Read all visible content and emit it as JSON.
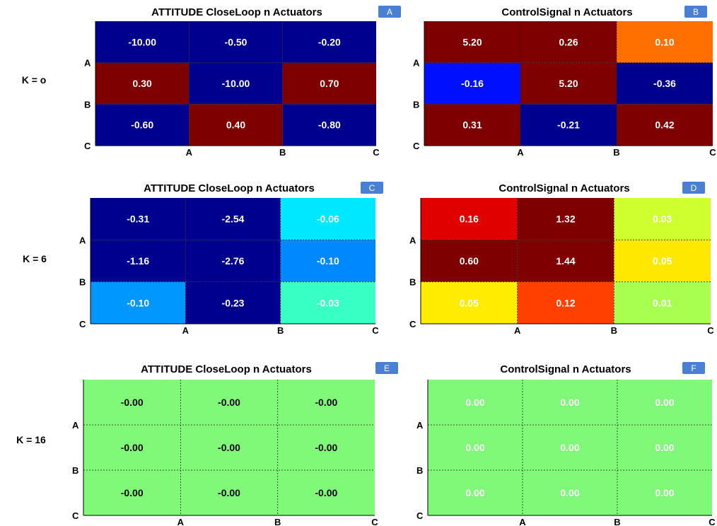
{
  "chart_data": [
    {
      "type": "heatmap",
      "title": "ATTITUDE CloseLoop n Actuators",
      "badge": "A",
      "row_group_label": "K = o",
      "row_tick_labels": [
        "A",
        "B",
        "C"
      ],
      "col_tick_labels": [
        "A",
        "B",
        "C"
      ],
      "values": [
        [
          -10.0,
          -0.5,
          -0.2
        ],
        [
          0.3,
          -10.0,
          0.7
        ],
        [
          -0.6,
          0.4,
          -0.8
        ]
      ],
      "cell_labels": [
        [
          "-10.00",
          "-0.50",
          "-0.20"
        ],
        [
          "0.30",
          "-10.00",
          "0.70"
        ],
        [
          "-0.60",
          "0.40",
          "-0.80"
        ]
      ],
      "cell_colors": [
        [
          "#00008f",
          "#00008f",
          "#00008f"
        ],
        [
          "#7f0000",
          "#00008f",
          "#7f0000"
        ],
        [
          "#00008f",
          "#7f0000",
          "#00008f"
        ]
      ],
      "label_color": "#ffffff",
      "grid": true
    },
    {
      "type": "heatmap",
      "title": "ControlSignal n Actuators",
      "badge": "B",
      "row_group_label": "",
      "row_tick_labels": [
        "A",
        "B",
        "C"
      ],
      "col_tick_labels": [
        "A",
        "B",
        "C"
      ],
      "values": [
        [
          5.2,
          0.26,
          0.1
        ],
        [
          -0.16,
          5.2,
          -0.36
        ],
        [
          0.31,
          -0.21,
          0.42
        ]
      ],
      "cell_labels": [
        [
          "5.20",
          "0.26",
          "0.10"
        ],
        [
          "-0.16",
          "5.20",
          "-0.36"
        ],
        [
          "0.31",
          "-0.21",
          "0.42"
        ]
      ],
      "cell_colors": [
        [
          "#7f0000",
          "#7f0000",
          "#ff7000"
        ],
        [
          "#0010ff",
          "#7f0000",
          "#00008f"
        ],
        [
          "#7f0000",
          "#00008f",
          "#7f0000"
        ]
      ],
      "label_color": "#ffffff",
      "grid": true
    },
    {
      "type": "heatmap",
      "title": "ATTITUDE CloseLoop n Actuators",
      "badge": "C",
      "row_group_label": "K = 6",
      "row_tick_labels": [
        "A",
        "B",
        "C"
      ],
      "col_tick_labels": [
        "A",
        "B",
        "C"
      ],
      "values": [
        [
          -0.31,
          -2.54,
          -0.06
        ],
        [
          -1.16,
          -2.76,
          -0.1
        ],
        [
          -0.1,
          -0.23,
          -0.03
        ]
      ],
      "cell_labels": [
        [
          "-0.31",
          "-2.54",
          "-0.06"
        ],
        [
          "-1.16",
          "-2.76",
          "-0.10"
        ],
        [
          "-0.10",
          "-0.23",
          "-0.03"
        ]
      ],
      "cell_colors": [
        [
          "#00008f",
          "#00008f",
          "#00e8ff"
        ],
        [
          "#00008f",
          "#00008f",
          "#0088ff"
        ],
        [
          "#0098ff",
          "#00008f",
          "#38ffc4"
        ]
      ],
      "label_color": "#ffffff",
      "grid": true
    },
    {
      "type": "heatmap",
      "title": "ControlSignal n Actuators",
      "badge": "D",
      "row_group_label": "",
      "row_tick_labels": [
        "A",
        "B",
        "C"
      ],
      "col_tick_labels": [
        "A",
        "B",
        "C"
      ],
      "values": [
        [
          0.16,
          1.32,
          0.03
        ],
        [
          0.6,
          1.44,
          0.05
        ],
        [
          0.05,
          0.12,
          0.01
        ]
      ],
      "cell_labels": [
        [
          "0.16",
          "1.32",
          "0.03"
        ],
        [
          "0.60",
          "1.44",
          "0.05"
        ],
        [
          "0.05",
          "0.12",
          "0.01"
        ]
      ],
      "cell_colors": [
        [
          "#e00000",
          "#7f0000",
          "#d0ff30"
        ],
        [
          "#7f0000",
          "#7f0000",
          "#ffe800"
        ],
        [
          "#ffec00",
          "#ff4000",
          "#a8ff50"
        ]
      ],
      "label_color": "#ffffff",
      "grid": true
    },
    {
      "type": "heatmap",
      "title": "ATTITUDE CloseLoop n Actuators",
      "badge": "E",
      "row_group_label": "K = 16",
      "row_tick_labels": [
        "A",
        "B",
        "C"
      ],
      "col_tick_labels": [
        "A",
        "B",
        "C"
      ],
      "values": [
        [
          -0.0,
          -0.0,
          -0.0
        ],
        [
          -0.0,
          -0.0,
          -0.0
        ],
        [
          -0.0,
          -0.0,
          -0.0
        ]
      ],
      "cell_labels": [
        [
          "-0.00",
          "-0.00",
          "-0.00"
        ],
        [
          "-0.00",
          "-0.00",
          "-0.00"
        ],
        [
          "-0.00",
          "-0.00",
          "-0.00"
        ]
      ],
      "cell_colors": [
        [
          "#80f878",
          "#80f878",
          "#80f878"
        ],
        [
          "#80f878",
          "#80f878",
          "#80f878"
        ],
        [
          "#80f878",
          "#80f878",
          "#80f878"
        ]
      ],
      "label_color": "#000000",
      "grid": true
    },
    {
      "type": "heatmap",
      "title": "ControlSignal n Actuators",
      "badge": "F",
      "row_group_label": "",
      "row_tick_labels": [
        "A",
        "B",
        "C"
      ],
      "col_tick_labels": [
        "A",
        "B",
        "C"
      ],
      "values": [
        [
          0.0,
          0.0,
          0.0
        ],
        [
          0.0,
          0.0,
          0.0
        ],
        [
          0.0,
          0.0,
          0.0
        ]
      ],
      "cell_labels": [
        [
          "0.00",
          "0.00",
          "0.00"
        ],
        [
          "0.00",
          "0.00",
          "0.00"
        ],
        [
          "0.00",
          "0.00",
          "0.00"
        ]
      ],
      "cell_colors": [
        [
          "#80f878",
          "#80f878",
          "#80f878"
        ],
        [
          "#80f878",
          "#80f878",
          "#80f878"
        ],
        [
          "#80f878",
          "#80f878",
          "#80f878"
        ]
      ],
      "label_color": "#ffffff",
      "grid": true
    }
  ],
  "colors": {
    "badge": "#4a7fd4",
    "badge_text": "#ffffff",
    "grid_line": "#222222"
  }
}
